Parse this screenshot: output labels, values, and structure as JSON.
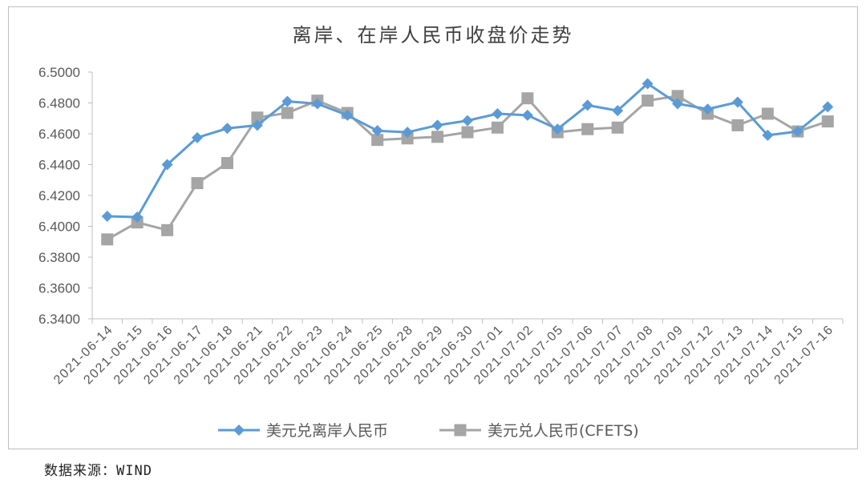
{
  "source_note": "数据来源：WIND",
  "colors": {
    "offshore": "#5B9BD5",
    "onshore": "#A5A5A5",
    "axis": "#bfbfbf",
    "text": "#595959"
  },
  "chart_data": {
    "type": "line",
    "title": "离岸、在岸人民币收盘价走势",
    "categories": [
      "2021-06-14",
      "2021-06-15",
      "2021-06-16",
      "2021-06-17",
      "2021-06-18",
      "2021-06-21",
      "2021-06-22",
      "2021-06-23",
      "2021-06-24",
      "2021-06-25",
      "2021-06-28",
      "2021-06-29",
      "2021-06-30",
      "2021-07-01",
      "2021-07-02",
      "2021-07-05",
      "2021-07-06",
      "2021-07-07",
      "2021-07-08",
      "2021-07-09",
      "2021-07-12",
      "2021-07-13",
      "2021-07-14",
      "2021-07-15",
      "2021-07-16"
    ],
    "ylim": [
      6.34,
      6.5
    ],
    "yticks": [
      "6.3400",
      "6.3600",
      "6.3800",
      "6.4000",
      "6.4200",
      "6.4400",
      "6.4600",
      "6.4800",
      "6.5000"
    ],
    "grid": false,
    "legend_position": "bottom",
    "series": [
      {
        "name": "美元兑离岸人民币",
        "marker": "diamond",
        "color": "#5B9BD5",
        "values": [
          6.4065,
          6.406,
          6.44,
          6.4575,
          6.4635,
          6.4655,
          6.481,
          6.4795,
          6.472,
          6.462,
          6.461,
          6.4655,
          6.4685,
          6.473,
          6.472,
          6.463,
          6.4785,
          6.475,
          6.4925,
          6.4795,
          6.476,
          6.4805,
          6.459,
          6.4615,
          6.4775
        ]
      },
      {
        "name": "美元兑人民币(CFETS)",
        "marker": "square",
        "color": "#A5A5A5",
        "values": [
          6.3915,
          6.4025,
          6.3975,
          6.428,
          6.441,
          6.4705,
          6.4735,
          6.4815,
          6.4735,
          6.456,
          6.457,
          6.458,
          6.461,
          6.464,
          6.483,
          6.461,
          6.463,
          6.464,
          6.4815,
          6.4845,
          6.473,
          6.4655,
          6.473,
          6.4615,
          6.468
        ]
      }
    ]
  }
}
